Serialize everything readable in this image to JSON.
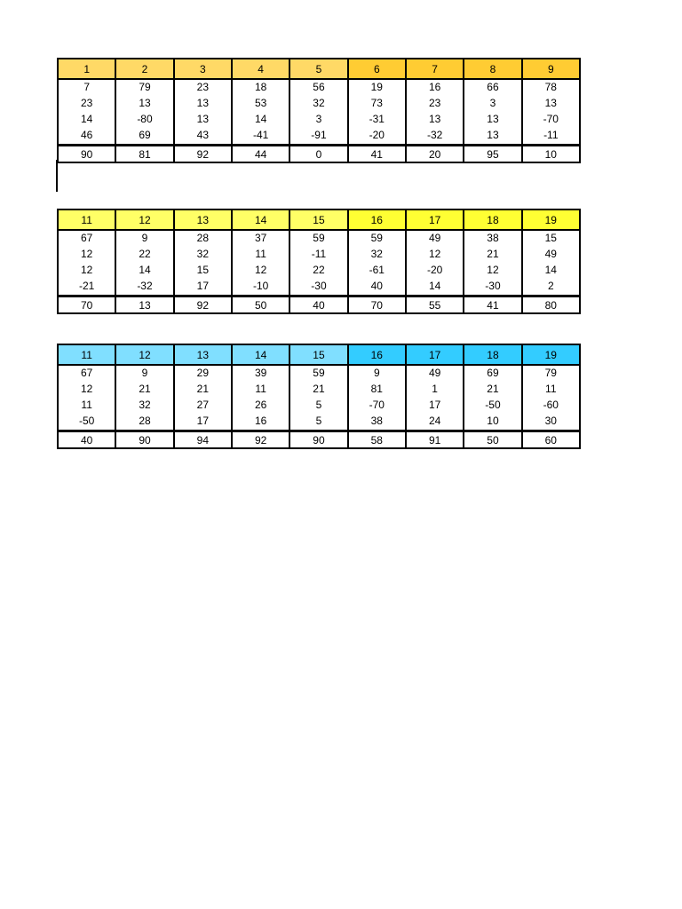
{
  "tables": [
    {
      "header_colors": [
        "#FFD966",
        "#FFCC33"
      ],
      "headers": [
        "1",
        "2",
        "3",
        "4",
        "5",
        "6",
        "7",
        "8",
        "9"
      ],
      "rows": [
        [
          "7",
          "79",
          "23",
          "18",
          "56",
          "19",
          "16",
          "66",
          "78"
        ],
        [
          "23",
          "13",
          "13",
          "53",
          "32",
          "73",
          "23",
          "3",
          "13"
        ],
        [
          "14",
          "-80",
          "13",
          "14",
          "3",
          "-31",
          "13",
          "13",
          "-70"
        ],
        [
          "46",
          "69",
          "43",
          "-41",
          "-91",
          "-20",
          "-32",
          "13",
          "-11"
        ]
      ],
      "totals": [
        "90",
        "81",
        "92",
        "44",
        "0",
        "41",
        "20",
        "95",
        "10"
      ]
    },
    {
      "header_colors": [
        "#FFFF66",
        "#FFFF33"
      ],
      "headers": [
        "11",
        "12",
        "13",
        "14",
        "15",
        "16",
        "17",
        "18",
        "19"
      ],
      "rows": [
        [
          "67",
          "9",
          "28",
          "37",
          "59",
          "59",
          "49",
          "38",
          "15"
        ],
        [
          "12",
          "22",
          "32",
          "11",
          "-11",
          "32",
          "12",
          "21",
          "49"
        ],
        [
          "12",
          "14",
          "15",
          "12",
          "22",
          "-61",
          "-20",
          "12",
          "14"
        ],
        [
          "-21",
          "-32",
          "17",
          "-10",
          "-30",
          "40",
          "14",
          "-30",
          "2"
        ]
      ],
      "totals": [
        "70",
        "13",
        "92",
        "50",
        "40",
        "70",
        "55",
        "41",
        "80"
      ]
    },
    {
      "header_colors": [
        "#80DFFF",
        "#33CCFF"
      ],
      "headers": [
        "11",
        "12",
        "13",
        "14",
        "15",
        "16",
        "17",
        "18",
        "19"
      ],
      "rows": [
        [
          "67",
          "9",
          "29",
          "39",
          "59",
          "9",
          "49",
          "69",
          "79"
        ],
        [
          "12",
          "21",
          "21",
          "11",
          "21",
          "81",
          "1",
          "21",
          "11"
        ],
        [
          "11",
          "32",
          "27",
          "26",
          "5",
          "-70",
          "17",
          "-50",
          "-60"
        ],
        [
          "-50",
          "28",
          "17",
          "16",
          "5",
          "38",
          "24",
          "10",
          "30"
        ]
      ],
      "totals": [
        "40",
        "90",
        "94",
        "92",
        "90",
        "58",
        "91",
        "50",
        "60"
      ]
    }
  ]
}
